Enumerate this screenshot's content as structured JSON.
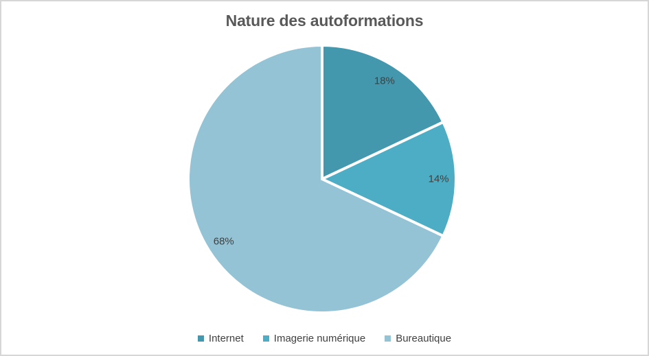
{
  "page": {
    "background_color": "#ffffff",
    "frame_border_color": "#d6d6d6"
  },
  "chart_data": {
    "type": "pie",
    "title": "Nature des autoformations",
    "categories": [
      "Internet",
      "Imagerie numérique",
      "Bureautique"
    ],
    "values": [
      18,
      14,
      68
    ],
    "labels": [
      "18%",
      "14%",
      "68%"
    ],
    "colors": [
      "#4398ae",
      "#4dadc4",
      "#94c3d6"
    ],
    "start_angle_deg": 0,
    "direction": "clockwise",
    "slice_gap_color": "#ffffff",
    "label_color": "#404040",
    "title_color": "#595959",
    "legend_text_color": "#404040",
    "legend_position": "bottom",
    "grid": false
  }
}
